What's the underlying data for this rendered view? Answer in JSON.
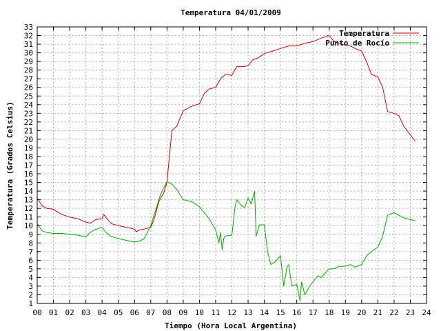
{
  "chart_data": {
    "type": "line",
    "title": "Temperatura 04/01/2009",
    "xlabel": "Tiempo (Hora Local Argentina)",
    "ylabel": "Temperatura (Grados Celsius)",
    "xlim": [
      0,
      24
    ],
    "ylim": [
      1,
      33
    ],
    "xticks": [
      "00",
      "01",
      "02",
      "03",
      "04",
      "05",
      "06",
      "07",
      "08",
      "09",
      "10",
      "11",
      "12",
      "13",
      "14",
      "15",
      "16",
      "17",
      "18",
      "19",
      "20",
      "21",
      "22",
      "23",
      "24"
    ],
    "yticks": [
      1,
      2,
      3,
      4,
      5,
      6,
      7,
      8,
      9,
      10,
      11,
      12,
      13,
      14,
      15,
      16,
      17,
      18,
      19,
      20,
      21,
      22,
      23,
      24,
      25,
      26,
      27,
      28,
      29,
      30,
      31,
      32,
      33
    ],
    "grid": true,
    "legend_position": "top-right",
    "series": [
      {
        "name": "Temperatura",
        "color": "#cc0000",
        "x": [
          0,
          0.3,
          0.6,
          1,
          1.5,
          2,
          2.5,
          3,
          3.3,
          3.6,
          4,
          4.1,
          4.3,
          4.6,
          5,
          5.5,
          6,
          6.1,
          6.3,
          6.6,
          7,
          7.2,
          7.5,
          7.8,
          8,
          8.3,
          8.6,
          9,
          9.5,
          10,
          10.3,
          10.6,
          11,
          11.3,
          11.6,
          12,
          12.3,
          12.7,
          13,
          13.3,
          13.6,
          14,
          14.5,
          15,
          15.5,
          16,
          16.5,
          17,
          17.5,
          18,
          18.3,
          18.6,
          19,
          19.3,
          19.6,
          20,
          20.3,
          20.6,
          21,
          21.3,
          21.6,
          22,
          22.3,
          22.6,
          23,
          23.3
        ],
        "y": [
          13.2,
          12.3,
          12,
          11.9,
          11.3,
          11,
          10.8,
          10.4,
          10.3,
          10.7,
          10.8,
          11.3,
          10.8,
          10.2,
          10,
          9.8,
          9.6,
          9.3,
          9.5,
          9.6,
          9.8,
          10.7,
          12.8,
          13.8,
          15,
          21,
          21.5,
          23.3,
          23.8,
          24.1,
          25.3,
          25.8,
          26,
          27,
          27.5,
          27.4,
          28.4,
          28.4,
          28.5,
          29.2,
          29.4,
          29.9,
          30.2,
          30.5,
          30.8,
          30.8,
          31.1,
          31.3,
          31.7,
          32,
          31.3,
          31.1,
          30.9,
          30.8,
          30.5,
          30.2,
          29,
          27.5,
          27.2,
          26,
          23.2,
          23,
          22.7,
          21.5,
          20.5,
          19.8
        ],
        "final_value": 19.8
      },
      {
        "name": "Punto de Rocío",
        "color": "#00aa00",
        "x": [
          0,
          0.3,
          0.6,
          1,
          1.5,
          2,
          2.5,
          3,
          3.2,
          3.5,
          4,
          4.2,
          4.5,
          5,
          5.5,
          6,
          6.3,
          6.6,
          7,
          7.3,
          7.6,
          8,
          8.3,
          8.6,
          9,
          9.5,
          10,
          10.3,
          10.6,
          11,
          11.2,
          11.3,
          11.4,
          11.5,
          11.6,
          12,
          12.2,
          12.3,
          12.6,
          12.8,
          13,
          13.2,
          13.4,
          13.5,
          13.7,
          14,
          14.2,
          14.4,
          14.6,
          15,
          15.2,
          15.4,
          15.5,
          15.7,
          16,
          16.2,
          16.3,
          16.5,
          16.8,
          17,
          17.3,
          17.5,
          18,
          18.3,
          18.6,
          19,
          19.3,
          19.6,
          20,
          20.3,
          20.6,
          21,
          21.3,
          21.6,
          22,
          22.3,
          22.6,
          23,
          23.3
        ],
        "y": [
          10.2,
          9.4,
          9.2,
          9.1,
          9.1,
          9,
          8.9,
          8.7,
          9.1,
          9.5,
          9.8,
          9.3,
          8.8,
          8.5,
          8.3,
          8.1,
          8.2,
          8.5,
          10,
          11.8,
          13.6,
          15.1,
          14.8,
          14.2,
          13,
          12.8,
          12.2,
          11.5,
          10.8,
          9.5,
          8,
          9.2,
          7.2,
          8.5,
          8.8,
          8.9,
          12.2,
          13,
          12.3,
          12.1,
          13.2,
          12.5,
          14,
          8.8,
          10.1,
          10.1,
          7,
          5.5,
          5.7,
          6.5,
          3,
          5.2,
          5.5,
          3,
          3.2,
          1.3,
          3.5,
          2,
          3,
          3.5,
          4.2,
          4,
          5,
          5,
          5.3,
          5.3,
          5.5,
          5.2,
          5.5,
          6.5,
          7,
          7.5,
          8.8,
          11.2,
          11.5,
          11.2,
          10.9,
          10.7,
          10.6
        ],
        "final_value": 10.6
      }
    ]
  },
  "colors": {
    "background": "#ffffff",
    "axis": "#000000",
    "grid": "#aaaaaa"
  }
}
